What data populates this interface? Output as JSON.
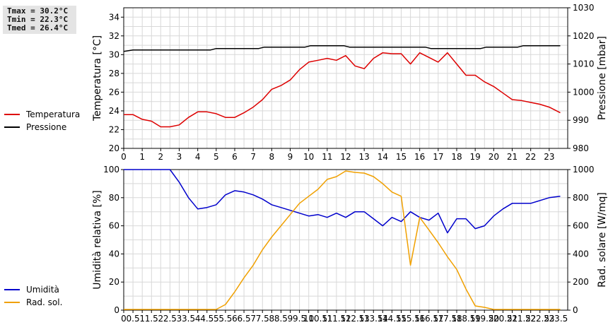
{
  "stats": {
    "tmax": "Tmax = 30.2°C",
    "tmin": "Tmin = 22.3°C",
    "tmed": "Tmed = 26.4°C"
  },
  "chart_data": [
    {
      "type": "line",
      "x_ticks": [
        "0",
        "1",
        "2",
        "3",
        "4",
        "5",
        "6",
        "7",
        "8",
        "9",
        "10",
        "11",
        "12",
        "13",
        "14",
        "15",
        "16",
        "17",
        "18",
        "19",
        "20",
        "21",
        "22",
        "23"
      ],
      "xlim": [
        0,
        24
      ],
      "ylabel_left": "Temperatura [°C]",
      "ylabel_right": "Pressione [mbar]",
      "ylim_left": [
        20,
        35
      ],
      "ylim_right": [
        980,
        1030
      ],
      "yticks_left": [
        20,
        22,
        24,
        26,
        28,
        30,
        32,
        34
      ],
      "yticks_right": [
        980,
        990,
        1000,
        1010,
        1020,
        1030
      ],
      "grid": true,
      "legend_position": "left",
      "series": [
        {
          "name": "Temperatura",
          "axis": "left",
          "color": "#dd0000",
          "points": [
            [
              0,
              23.6
            ],
            [
              0.5,
              23.6
            ],
            [
              1,
              23.1
            ],
            [
              1.5,
              22.9
            ],
            [
              2,
              22.3
            ],
            [
              2.5,
              22.3
            ],
            [
              3,
              22.5
            ],
            [
              3.5,
              23.3
            ],
            [
              4,
              23.9
            ],
            [
              4.5,
              23.9
            ],
            [
              5,
              23.7
            ],
            [
              5.5,
              23.3
            ],
            [
              6,
              23.3
            ],
            [
              6.5,
              23.8
            ],
            [
              7,
              24.4
            ],
            [
              7.5,
              25.2
            ],
            [
              8,
              26.3
            ],
            [
              8.5,
              26.7
            ],
            [
              9,
              27.3
            ],
            [
              9.5,
              28.4
            ],
            [
              10,
              29.2
            ],
            [
              10.5,
              29.4
            ],
            [
              11,
              29.6
            ],
            [
              11.5,
              29.4
            ],
            [
              12,
              29.9
            ],
            [
              12.5,
              28.8
            ],
            [
              13,
              28.5
            ],
            [
              13.5,
              29.6
            ],
            [
              14,
              30.2
            ],
            [
              14.5,
              30.1
            ],
            [
              15,
              30.1
            ],
            [
              15.5,
              29.0
            ],
            [
              16,
              30.2
            ],
            [
              16.5,
              29.7
            ],
            [
              17,
              29.2
            ],
            [
              17.5,
              30.2
            ],
            [
              18,
              29.0
            ],
            [
              18.5,
              27.8
            ],
            [
              19,
              27.8
            ],
            [
              19.5,
              27.1
            ],
            [
              20,
              26.6
            ],
            [
              20.5,
              25.9
            ],
            [
              21,
              25.2
            ],
            [
              21.5,
              25.1
            ],
            [
              22,
              24.9
            ],
            [
              22.5,
              24.7
            ],
            [
              23,
              24.4
            ],
            [
              23.6,
              23.8
            ]
          ]
        },
        {
          "name": "Pressione",
          "axis": "right",
          "color": "#000000",
          "points": [
            [
              0,
              1014.5
            ],
            [
              0.5,
              1015
            ],
            [
              4.7,
              1015
            ],
            [
              5,
              1015.5
            ],
            [
              7.3,
              1015.5
            ],
            [
              7.6,
              1016
            ],
            [
              9.8,
              1016
            ],
            [
              10.1,
              1016.5
            ],
            [
              11.9,
              1016.5
            ],
            [
              12.2,
              1016
            ],
            [
              16.3,
              1016
            ],
            [
              16.6,
              1015.5
            ],
            [
              19.3,
              1015.5
            ],
            [
              19.6,
              1016
            ],
            [
              21.3,
              1016
            ],
            [
              21.6,
              1016.5
            ],
            [
              23.6,
              1016.5
            ]
          ]
        }
      ]
    },
    {
      "type": "line",
      "x_ticks": [
        "0",
        "0.5",
        "1",
        "1.5",
        "2",
        "2.5",
        "3",
        "3.5",
        "4",
        "4.5",
        "5",
        "5.5",
        "6",
        "6.5",
        "7",
        "7.5",
        "8",
        "8.5",
        "9",
        "9.5",
        "10",
        "10.5",
        "11",
        "11.5",
        "12",
        "12.5",
        "13",
        "13.5",
        "14",
        "14.5",
        "15",
        "15.5",
        "16",
        "16.5",
        "17",
        "17.5",
        "18",
        "18.5",
        "19",
        "19.5",
        "20",
        "20.5",
        "21",
        "21.5",
        "22",
        "22.5",
        "23",
        "23.5"
      ],
      "xlim": [
        0,
        24
      ],
      "ylabel_left": "Umidità relativa [%]",
      "ylabel_right": "Rad. solare [W/mq]",
      "ylim_left": [
        0,
        100
      ],
      "ylim_right": [
        0,
        1000
      ],
      "yticks_left": [
        0,
        20,
        40,
        60,
        80,
        100
      ],
      "yticks_right": [
        0,
        200,
        400,
        600,
        800,
        1000
      ],
      "grid": true,
      "legend_position": "left",
      "series": [
        {
          "name": "Umidità",
          "axis": "left",
          "color": "#0000cc",
          "points": [
            [
              0,
              100
            ],
            [
              2.5,
              100
            ],
            [
              3,
              91
            ],
            [
              3.5,
              80
            ],
            [
              4,
              72
            ],
            [
              4.5,
              73
            ],
            [
              5,
              75
            ],
            [
              5.5,
              82
            ],
            [
              6,
              85
            ],
            [
              6.5,
              84
            ],
            [
              7,
              82
            ],
            [
              7.5,
              79
            ],
            [
              8,
              75
            ],
            [
              8.5,
              73
            ],
            [
              9,
              71
            ],
            [
              9.5,
              69
            ],
            [
              10,
              67
            ],
            [
              10.5,
              68
            ],
            [
              11,
              66
            ],
            [
              11.5,
              69
            ],
            [
              12,
              66
            ],
            [
              12.5,
              70
            ],
            [
              13,
              70
            ],
            [
              13.5,
              65
            ],
            [
              14,
              60
            ],
            [
              14.5,
              66
            ],
            [
              15,
              63
            ],
            [
              15.5,
              70
            ],
            [
              16,
              66
            ],
            [
              16.5,
              64
            ],
            [
              17,
              69
            ],
            [
              17.5,
              55
            ],
            [
              18,
              65
            ],
            [
              18.5,
              65
            ],
            [
              19,
              58
            ],
            [
              19.5,
              60
            ],
            [
              20,
              67
            ],
            [
              20.5,
              72
            ],
            [
              21,
              76
            ],
            [
              22,
              76
            ],
            [
              22.5,
              78
            ],
            [
              23,
              80
            ],
            [
              23.6,
              81
            ]
          ]
        },
        {
          "name": "Rad. sol.",
          "axis": "right",
          "color": "#f0a000",
          "points": [
            [
              0,
              5
            ],
            [
              5,
              5
            ],
            [
              5.5,
              40
            ],
            [
              6,
              130
            ],
            [
              6.5,
              230
            ],
            [
              7,
              320
            ],
            [
              7.5,
              430
            ],
            [
              8,
              520
            ],
            [
              8.5,
              600
            ],
            [
              9,
              680
            ],
            [
              9.5,
              760
            ],
            [
              10,
              810
            ],
            [
              10.5,
              860
            ],
            [
              11,
              930
            ],
            [
              11.5,
              950
            ],
            [
              12,
              990
            ],
            [
              12.5,
              980
            ],
            [
              13,
              975
            ],
            [
              13.5,
              950
            ],
            [
              14,
              900
            ],
            [
              14.5,
              840
            ],
            [
              15,
              810
            ],
            [
              15.5,
              320
            ],
            [
              16,
              660
            ],
            [
              16.5,
              570
            ],
            [
              17,
              480
            ],
            [
              17.5,
              380
            ],
            [
              18,
              290
            ],
            [
              18.5,
              150
            ],
            [
              19,
              30
            ],
            [
              19.5,
              20
            ],
            [
              20,
              5
            ],
            [
              23.6,
              5
            ]
          ]
        }
      ]
    }
  ]
}
